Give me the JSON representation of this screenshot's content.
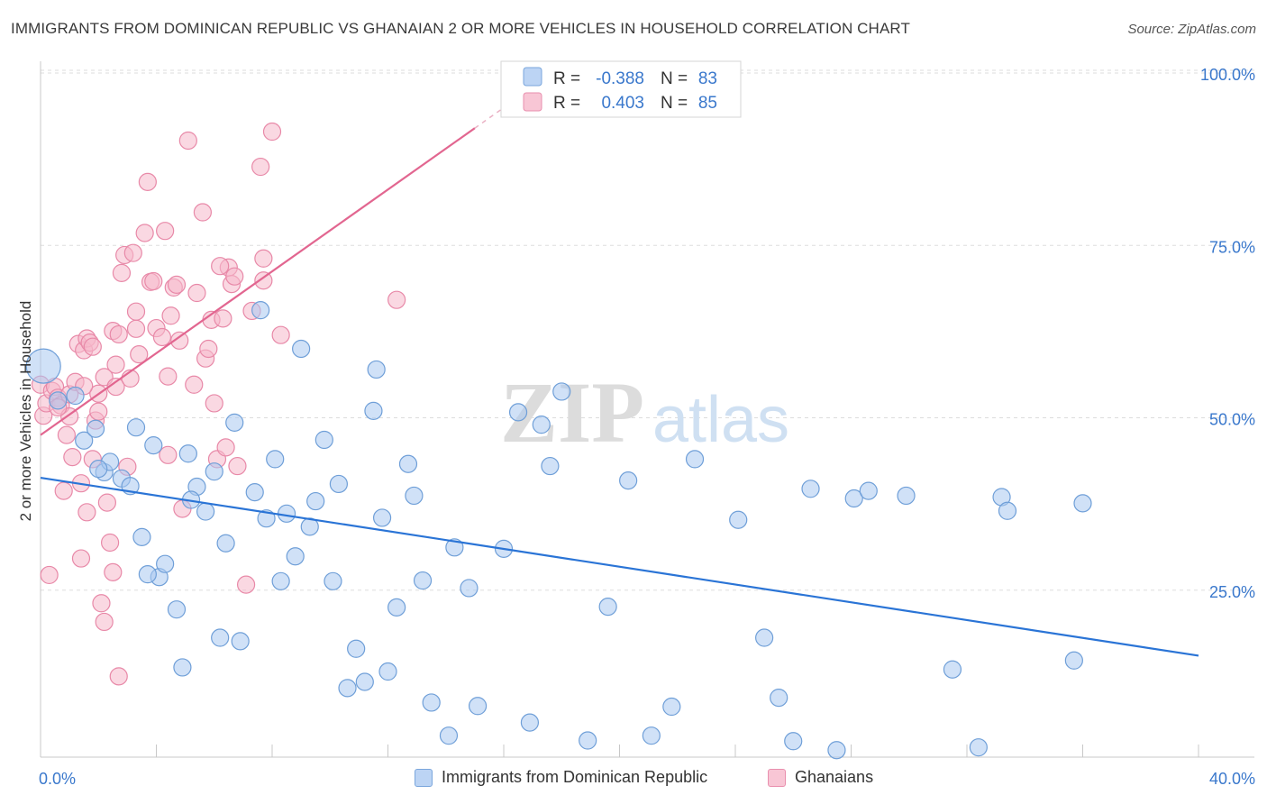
{
  "title": "IMMIGRANTS FROM DOMINICAN REPUBLIC VS GHANAIAN 2 OR MORE VEHICLES IN HOUSEHOLD CORRELATION CHART",
  "source": "Source: ZipAtlas.com",
  "watermark": {
    "zip": "ZIP",
    "atlas": "atlas"
  },
  "colors": {
    "blue_fill": "#a9c8f0",
    "blue_stroke": "#6f9fd8",
    "blue_line": "#2a74d6",
    "pink_fill": "#f6b8cb",
    "pink_stroke": "#e889a8",
    "pink_line": "#e26690",
    "axis_label_blue": "#3a78cc",
    "grid": "#dcdcdc"
  },
  "legend_box": {
    "rows": [
      {
        "r_label": "R =",
        "r_value": "-0.388",
        "n_label": "N =",
        "n_value": "83",
        "color": "blue"
      },
      {
        "r_label": "R =",
        "r_value": "0.403",
        "n_label": "N =",
        "n_value": "85",
        "color": "pink"
      }
    ]
  },
  "chart_data": {
    "type": "scatter",
    "title": "IMMIGRANTS FROM DOMINICAN REPUBLIC VS GHANAIAN 2 OR MORE VEHICLES IN HOUSEHOLD CORRELATION CHART",
    "xlabel": "",
    "ylabel": "2 or more Vehicles in Household",
    "xlim": [
      0,
      40
    ],
    "ylim": [
      0,
      102
    ],
    "x_tick_labels": [
      "0.0%",
      "40.0%"
    ],
    "y_tick_labels": [
      "25.0%",
      "50.0%",
      "75.0%",
      "100.0%"
    ],
    "y_ticks": [
      25,
      50,
      75,
      100
    ],
    "grid": true,
    "legend_position": "bottom",
    "series": [
      {
        "name": "Immigrants from Dominican Republic",
        "color": "blue",
        "trend": {
          "x": [
            0,
            40
          ],
          "y": [
            41.3,
            15.5
          ]
        },
        "points": [
          [
            0.1,
            57.5
          ],
          [
            0.6,
            52.5
          ],
          [
            1.2,
            53.2
          ],
          [
            1.5,
            46.7
          ],
          [
            1.9,
            48.4
          ],
          [
            2.2,
            42.1
          ],
          [
            2.4,
            43.6
          ],
          [
            2.8,
            41.2
          ],
          [
            3.1,
            40.1
          ],
          [
            3.3,
            48.6
          ],
          [
            3.5,
            32.7
          ],
          [
            3.9,
            46.0
          ],
          [
            4.1,
            26.9
          ],
          [
            4.3,
            28.8
          ],
          [
            4.7,
            22.2
          ],
          [
            4.9,
            13.8
          ],
          [
            5.1,
            44.8
          ],
          [
            5.4,
            40.0
          ],
          [
            5.7,
            36.4
          ],
          [
            6.0,
            42.2
          ],
          [
            6.2,
            18.1
          ],
          [
            6.4,
            31.8
          ],
          [
            6.7,
            49.3
          ],
          [
            6.9,
            17.6
          ],
          [
            7.4,
            39.2
          ],
          [
            7.6,
            65.6
          ],
          [
            7.8,
            35.4
          ],
          [
            8.1,
            44.0
          ],
          [
            8.3,
            26.3
          ],
          [
            8.5,
            36.1
          ],
          [
            8.8,
            29.9
          ],
          [
            9.0,
            60.0
          ],
          [
            9.3,
            34.2
          ],
          [
            9.5,
            37.9
          ],
          [
            9.8,
            46.8
          ],
          [
            10.1,
            26.3
          ],
          [
            10.3,
            40.4
          ],
          [
            10.6,
            10.8
          ],
          [
            10.9,
            16.5
          ],
          [
            11.2,
            11.7
          ],
          [
            11.5,
            51.0
          ],
          [
            11.6,
            57.0
          ],
          [
            11.8,
            35.5
          ],
          [
            12.0,
            13.2
          ],
          [
            12.3,
            22.5
          ],
          [
            12.7,
            43.3
          ],
          [
            12.9,
            38.7
          ],
          [
            13.2,
            26.4
          ],
          [
            13.5,
            8.7
          ],
          [
            14.1,
            3.9
          ],
          [
            14.3,
            31.2
          ],
          [
            14.8,
            25.3
          ],
          [
            15.1,
            8.2
          ],
          [
            16.0,
            31.0
          ],
          [
            16.5,
            50.8
          ],
          [
            16.9,
            5.8
          ],
          [
            17.3,
            49.0
          ],
          [
            17.6,
            43.0
          ],
          [
            18.0,
            53.8
          ],
          [
            18.9,
            3.2
          ],
          [
            19.6,
            22.6
          ],
          [
            20.3,
            40.9
          ],
          [
            21.1,
            3.9
          ],
          [
            21.8,
            8.1
          ],
          [
            22.6,
            44.0
          ],
          [
            24.1,
            35.2
          ],
          [
            25.0,
            18.1
          ],
          [
            25.5,
            9.4
          ],
          [
            26.0,
            3.1
          ],
          [
            26.6,
            39.7
          ],
          [
            27.5,
            1.8
          ],
          [
            28.1,
            38.3
          ],
          [
            28.6,
            39.4
          ],
          [
            29.9,
            38.7
          ],
          [
            31.5,
            13.5
          ],
          [
            32.4,
            2.2
          ],
          [
            33.2,
            38.5
          ],
          [
            33.4,
            36.5
          ],
          [
            35.7,
            14.8
          ],
          [
            36.0,
            37.6
          ],
          [
            5.2,
            38.1
          ],
          [
            2.0,
            42.6
          ],
          [
            3.7,
            27.3
          ]
        ]
      },
      {
        "name": "Ghanaians",
        "color": "pink",
        "trend": {
          "x": [
            0,
            15.0
          ],
          "y": [
            47.5,
            92.0
          ]
        },
        "points": [
          [
            0.0,
            54.8
          ],
          [
            0.1,
            50.3
          ],
          [
            0.2,
            52.1
          ],
          [
            0.3,
            27.2
          ],
          [
            0.4,
            53.9
          ],
          [
            0.5,
            54.5
          ],
          [
            0.6,
            52.9
          ],
          [
            0.7,
            51.8
          ],
          [
            0.8,
            39.4
          ],
          [
            0.9,
            47.5
          ],
          [
            1.0,
            53.4
          ],
          [
            1.0,
            50.2
          ],
          [
            1.1,
            44.3
          ],
          [
            1.2,
            55.2
          ],
          [
            1.3,
            60.7
          ],
          [
            1.4,
            29.6
          ],
          [
            1.4,
            40.5
          ],
          [
            1.5,
            59.8
          ],
          [
            1.6,
            36.3
          ],
          [
            1.6,
            61.5
          ],
          [
            1.7,
            60.9
          ],
          [
            1.8,
            60.3
          ],
          [
            1.8,
            44.0
          ],
          [
            1.9,
            49.6
          ],
          [
            2.0,
            53.5
          ],
          [
            2.0,
            50.9
          ],
          [
            2.1,
            23.1
          ],
          [
            2.2,
            55.9
          ],
          [
            2.2,
            20.4
          ],
          [
            2.3,
            37.7
          ],
          [
            2.4,
            31.9
          ],
          [
            2.5,
            27.6
          ],
          [
            2.5,
            62.6
          ],
          [
            2.6,
            57.7
          ],
          [
            2.6,
            54.5
          ],
          [
            2.7,
            62.1
          ],
          [
            2.8,
            71.0
          ],
          [
            2.9,
            73.6
          ],
          [
            3.0,
            42.9
          ],
          [
            3.1,
            55.7
          ],
          [
            3.2,
            73.9
          ],
          [
            3.3,
            62.9
          ],
          [
            3.4,
            59.2
          ],
          [
            3.6,
            76.8
          ],
          [
            3.7,
            84.2
          ],
          [
            3.8,
            69.7
          ],
          [
            3.9,
            69.8
          ],
          [
            4.0,
            63.0
          ],
          [
            4.2,
            61.7
          ],
          [
            4.3,
            77.1
          ],
          [
            4.4,
            56.0
          ],
          [
            4.4,
            44.6
          ],
          [
            4.6,
            68.9
          ],
          [
            4.7,
            69.3
          ],
          [
            4.8,
            61.2
          ],
          [
            4.9,
            36.8
          ],
          [
            5.1,
            90.2
          ],
          [
            5.3,
            54.8
          ],
          [
            5.4,
            68.1
          ],
          [
            5.6,
            79.8
          ],
          [
            5.7,
            58.6
          ],
          [
            5.8,
            60.0
          ],
          [
            5.9,
            64.2
          ],
          [
            6.0,
            52.1
          ],
          [
            6.1,
            44.0
          ],
          [
            6.3,
            64.4
          ],
          [
            6.4,
            45.7
          ],
          [
            6.5,
            71.8
          ],
          [
            6.6,
            69.4
          ],
          [
            6.7,
            70.5
          ],
          [
            6.8,
            43.0
          ],
          [
            7.1,
            25.8
          ],
          [
            7.3,
            65.5
          ],
          [
            7.6,
            86.4
          ],
          [
            7.7,
            73.1
          ],
          [
            7.7,
            69.9
          ],
          [
            8.0,
            91.5
          ],
          [
            8.3,
            62.0
          ],
          [
            12.3,
            67.1
          ],
          [
            2.7,
            12.5
          ],
          [
            0.6,
            51.5
          ],
          [
            1.5,
            54.6
          ],
          [
            3.3,
            65.4
          ],
          [
            4.5,
            64.8
          ],
          [
            6.2,
            72.0
          ]
        ]
      }
    ]
  },
  "bottom_legend": {
    "items": [
      {
        "label": "Immigrants from Dominican Republic",
        "color": "blue"
      },
      {
        "label": "Ghanaians",
        "color": "pink"
      }
    ]
  }
}
